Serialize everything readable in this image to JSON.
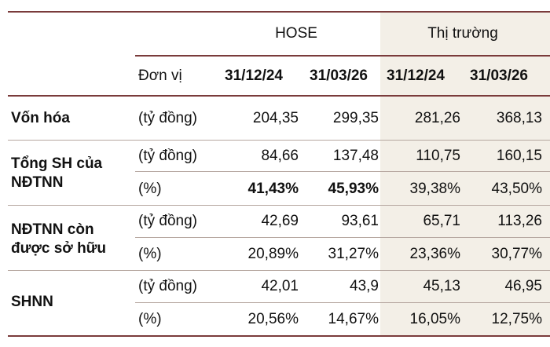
{
  "header": {
    "group_hose": "HOSE",
    "group_market": "Thị trường",
    "unit_label": "Đơn vị",
    "dates": [
      "31/12/24",
      "31/03/26",
      "31/12/24",
      "31/03/26"
    ]
  },
  "rows": [
    {
      "label": "Vốn hóa",
      "unit": "(tỷ đồng)",
      "values": [
        "204,35",
        "299,35",
        "281,26",
        "368,13"
      ]
    },
    {
      "label_line1": "Tổng SH của",
      "label_line2": "NĐTNN",
      "sub": [
        {
          "unit": "(tỷ đồng)",
          "values": [
            "84,66",
            "137,48",
            "110,75",
            "160,15"
          ]
        },
        {
          "unit": "(%)",
          "values": [
            "41,43%",
            "45,93%",
            "39,38%",
            "43,50%"
          ]
        }
      ]
    },
    {
      "label_line1": "NĐTNN còn",
      "label_line2": "được sở hữu",
      "sub": [
        {
          "unit": "(tỷ đồng)",
          "values": [
            "42,69",
            "93,61",
            "65,71",
            "113,26"
          ]
        },
        {
          "unit": "(%)",
          "values": [
            "20,89%",
            "31,27%",
            "23,36%",
            "30,77%"
          ]
        }
      ]
    },
    {
      "label": "SHNN",
      "sub": [
        {
          "unit": "(tỷ đồng)",
          "values": [
            "42,01",
            "43,9",
            "45,13",
            "46,95"
          ]
        },
        {
          "unit": "(%)",
          "values": [
            "20,56%",
            "14,67%",
            "16,05%",
            "12,75%"
          ]
        }
      ]
    }
  ]
}
